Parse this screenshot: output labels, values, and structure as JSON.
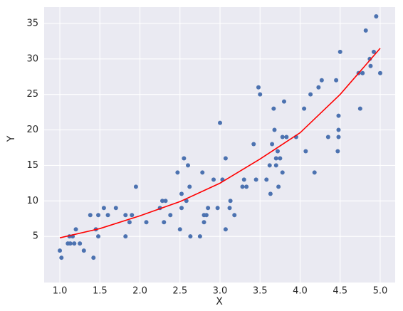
{
  "chart_data": {
    "type": "scatter",
    "xlabel": "X",
    "ylabel": "Y",
    "xlim": [
      0.804,
      5.187
    ],
    "ylim": [
      -1.5,
      37.3
    ],
    "xticks": [
      {
        "value": 1,
        "label": "1.0"
      },
      {
        "value": 1.5,
        "label": "1.5"
      },
      {
        "value": 2,
        "label": "2.0"
      },
      {
        "value": 2.5,
        "label": "2.5"
      },
      {
        "value": 3,
        "label": "3.0"
      },
      {
        "value": 3.5,
        "label": "3.5"
      },
      {
        "value": 4,
        "label": "4.0"
      },
      {
        "value": 4.5,
        "label": "4.5"
      },
      {
        "value": 5,
        "label": "5.0"
      }
    ],
    "yticks": [
      5,
      10,
      15,
      20,
      25,
      30,
      35
    ],
    "grid": true,
    "series": [
      {
        "type": "scatter",
        "color": "#4c72b0",
        "x": [
          1.0,
          1.02,
          1.1,
          1.12,
          1.13,
          1.16,
          1.18,
          1.2,
          1.25,
          1.3,
          1.38,
          1.42,
          1.45,
          1.48,
          1.48,
          1.55,
          1.6,
          1.7,
          1.82,
          1.82,
          1.87,
          1.9,
          1.95,
          2.08,
          2.25,
          2.28,
          2.3,
          2.32,
          2.38,
          2.47,
          2.5,
          2.52,
          2.52,
          2.55,
          2.58,
          2.6,
          2.62,
          2.63,
          2.75,
          2.78,
          2.8,
          2.8,
          2.83,
          2.85,
          2.92,
          2.97,
          3.0,
          3.03,
          3.07,
          3.07,
          3.12,
          3.13,
          3.18,
          3.28,
          3.3,
          3.33,
          3.42,
          3.45,
          3.48,
          3.5,
          3.58,
          3.62,
          3.63,
          3.65,
          3.67,
          3.68,
          3.7,
          3.7,
          3.72,
          3.73,
          3.75,
          3.78,
          3.78,
          3.8,
          3.83,
          3.95,
          4.05,
          4.07,
          4.13,
          4.18,
          4.23,
          4.27,
          4.35,
          4.45,
          4.47,
          4.48,
          4.48,
          4.48,
          4.5,
          4.73,
          4.75,
          4.78,
          4.82,
          4.87,
          4.88,
          4.92,
          4.95,
          5.0
        ],
        "values": [
          3,
          2,
          4,
          5,
          4,
          5,
          4,
          6,
          4,
          3,
          8,
          2,
          6,
          5,
          8,
          9,
          8,
          9,
          8,
          5,
          7,
          8,
          12,
          7,
          9,
          10,
          7,
          10,
          8,
          14,
          6,
          9,
          11,
          16,
          10,
          15,
          12,
          5,
          5,
          14,
          7,
          8,
          8,
          9,
          13,
          9,
          21,
          13,
          6,
          16,
          9,
          10,
          8,
          12,
          13,
          12,
          18,
          13,
          26,
          25,
          13,
          15,
          11,
          18,
          23,
          20,
          15,
          16,
          17,
          12,
          16,
          19,
          14,
          24,
          19,
          19,
          23,
          17,
          25,
          14,
          26,
          27,
          19,
          27,
          17,
          22,
          20,
          19,
          31,
          28,
          23,
          28,
          34,
          30,
          29,
          31,
          36,
          28
        ]
      },
      {
        "type": "line",
        "color": "#ff0000",
        "x": [
          1,
          1.5,
          2,
          2.5,
          3,
          3.5,
          4,
          4.5,
          5
        ],
        "values": [
          4.8,
          6.1,
          7.9,
          9.9,
          12.5,
          15.9,
          19.6,
          25,
          31.5
        ]
      }
    ]
  }
}
